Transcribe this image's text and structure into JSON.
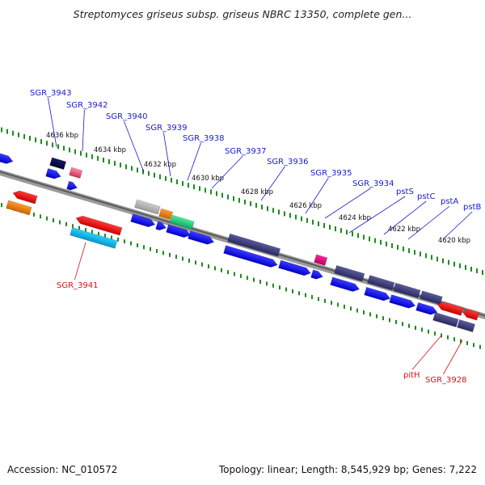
{
  "title": "Streptomyces griseus subsp. griseus NBRC 13350, complete gen...",
  "footer": {
    "accession": "Accession: NC_010572",
    "summary": "Topology: linear; Length: 8,545,929 bp; Genes: 7,222"
  },
  "colors": {
    "label_forward": "#1a1acc",
    "label_reverse": "#dd1111",
    "backbone": "#7a7a7a",
    "tick": "#1f8a1f"
  },
  "positions_kbp": [
    "4636 kbp",
    "4634 kbp",
    "4632 kbp",
    "4630 kbp",
    "4628 kbp",
    "4626 kbp",
    "4624 kbp",
    "4622 kbp",
    "4620 kbp"
  ],
  "labels": [
    {
      "text": "SGR_3943",
      "strand": "forward"
    },
    {
      "text": "SGR_3942",
      "strand": "forward"
    },
    {
      "text": "SGR_3940",
      "strand": "forward"
    },
    {
      "text": "SGR_3939",
      "strand": "forward"
    },
    {
      "text": "SGR_3938",
      "strand": "forward"
    },
    {
      "text": "SGR_3937",
      "strand": "forward"
    },
    {
      "text": "SGR_3936",
      "strand": "forward"
    },
    {
      "text": "SGR_3935",
      "strand": "forward"
    },
    {
      "text": "SGR_3934",
      "strand": "forward"
    },
    {
      "text": "pstS",
      "strand": "forward"
    },
    {
      "text": "pstC",
      "strand": "forward"
    },
    {
      "text": "pstA",
      "strand": "forward"
    },
    {
      "text": "pstB",
      "strand": "forward"
    },
    {
      "text": "SGR_3941",
      "strand": "reverse"
    },
    {
      "text": "pitH",
      "strand": "reverse"
    },
    {
      "text": "SGR_3928",
      "strand": "reverse"
    }
  ]
}
